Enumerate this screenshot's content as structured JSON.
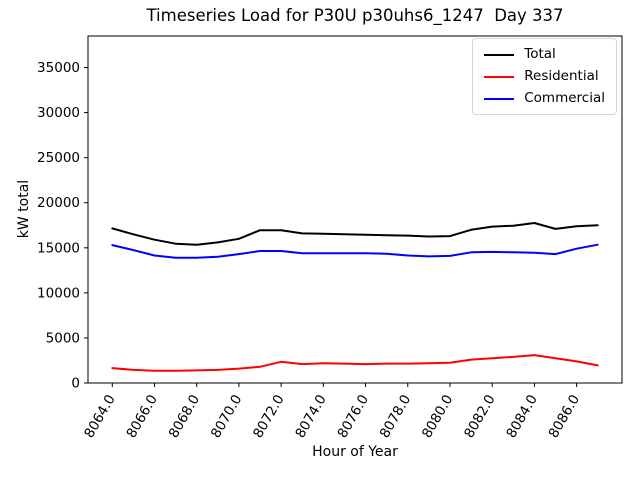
{
  "chart_data": {
    "type": "line",
    "title": "Timeseries Load for P30U p30uhs6_1247  Day 337",
    "xlabel": "Hour of Year",
    "ylabel": "kW total",
    "xlim": [
      8062.85,
      8088.15
    ],
    "ylim": [
      0,
      38500
    ],
    "grid": false,
    "legend_position": "upper right",
    "xticks": {
      "values": [
        8064,
        8066,
        8068,
        8070,
        8072,
        8074,
        8076,
        8078,
        8080,
        8082,
        8084,
        8086
      ],
      "labels": [
        "8064.0",
        "8066.0",
        "8068.0",
        "8070.0",
        "8072.0",
        "8074.0",
        "8076.0",
        "8078.0",
        "8080.0",
        "8082.0",
        "8084.0",
        "8086.0"
      ],
      "rotation_deg": 60
    },
    "yticks": {
      "values": [
        0,
        5000,
        10000,
        15000,
        20000,
        25000,
        30000,
        35000
      ],
      "labels": [
        "0",
        "5000",
        "10000",
        "15000",
        "20000",
        "25000",
        "30000",
        "35000"
      ]
    },
    "x": [
      8064,
      8065,
      8066,
      8067,
      8068,
      8069,
      8070,
      8071,
      8072,
      8073,
      8074,
      8075,
      8076,
      8077,
      8078,
      8079,
      8080,
      8081,
      8082,
      8083,
      8084,
      8085,
      8086,
      8087
    ],
    "series": [
      {
        "name": "Total",
        "color": "#000000",
        "values": [
          17150,
          16500,
          15900,
          15450,
          15350,
          15600,
          16000,
          16950,
          16950,
          16600,
          16550,
          16500,
          16450,
          16400,
          16350,
          16250,
          16300,
          17000,
          17350,
          17450,
          17750,
          17100,
          17400,
          17500
        ]
      },
      {
        "name": "Residential",
        "color": "#ff0000",
        "values": [
          1650,
          1450,
          1350,
          1350,
          1400,
          1450,
          1600,
          1800,
          2350,
          2100,
          2200,
          2150,
          2100,
          2150,
          2150,
          2200,
          2250,
          2600,
          2750,
          2900,
          3100,
          2750,
          2400,
          1950
        ]
      },
      {
        "name": "Commercial",
        "color": "#0000ff",
        "values": [
          15300,
          14750,
          14150,
          13900,
          13900,
          14000,
          14300,
          14650,
          14650,
          14400,
          14400,
          14400,
          14400,
          14350,
          14150,
          14050,
          14100,
          14500,
          14550,
          14500,
          14450,
          14300,
          14900,
          15350
        ]
      }
    ]
  }
}
